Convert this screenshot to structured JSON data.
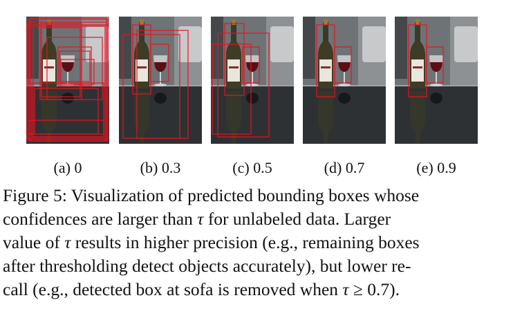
{
  "panels": [
    {
      "label": "(a) 0",
      "tau": "0",
      "box_count": 14
    },
    {
      "label": "(b) 0.3",
      "tau": "0.3",
      "box_count": 4
    },
    {
      "label": "(c) 0.5",
      "tau": "0.5",
      "box_count": 4
    },
    {
      "label": "(d) 0.7",
      "tau": "0.7",
      "box_count": 2
    },
    {
      "label": "(e) 0.9",
      "tau": "0.9",
      "box_count": 2
    }
  ],
  "caption": {
    "line1": "Figure 5: Visualization of predicted bounding boxes whose",
    "line2a": "confidences are larger than ",
    "line2b": " for unlabeled data.  Larger",
    "line3a": "value of ",
    "line3b": " results in higher precision (e.g., remaining boxes",
    "line4": "after thresholding detect objects accurately), but lower re-",
    "line5a": "call (e.g., detected box at sofa is removed when ",
    "line5b": " ≥ 0.7).",
    "tau_symbol": "τ"
  },
  "colors": {
    "box": "#e8131f"
  }
}
